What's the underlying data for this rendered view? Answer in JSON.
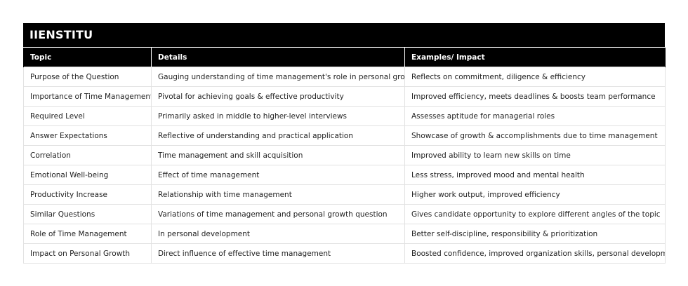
{
  "brand": {
    "title": "IIENSTITU"
  },
  "table": {
    "headers": [
      "Topic",
      "Details",
      "Examples/ Impact"
    ],
    "rows": [
      [
        "Purpose of the Question",
        "Gauging understanding of time management's role in personal growth",
        "Reflects on commitment, diligence & efficiency"
      ],
      [
        "Importance of Time Management",
        "Pivotal for achieving goals & effective productivity",
        "Improved efficiency, meets deadlines & boosts team performance"
      ],
      [
        "Required Level",
        "Primarily asked in middle to higher-level interviews",
        "Assesses aptitude for managerial roles"
      ],
      [
        "Answer Expectations",
        "Reflective of understanding and practical application",
        "Showcase of growth & accomplishments due to time management"
      ],
      [
        "Correlation",
        "Time management and skill acquisition",
        "Improved ability to learn new skills on time"
      ],
      [
        "Emotional Well-being",
        "Effect of time management",
        "Less stress, improved mood and mental health"
      ],
      [
        "Productivity Increase",
        "Relationship with time management",
        "Higher work output, improved efficiency"
      ],
      [
        "Similar Questions",
        "Variations of time management and personal growth question",
        "Gives candidate opportunity to explore different angles of the topic"
      ],
      [
        "Role of Time Management",
        "In personal development",
        "Better self-discipline, responsibility & prioritization"
      ],
      [
        "Impact on Personal Growth",
        "Direct influence of effective time management",
        "Boosted confidence, improved organization skills, personal development"
      ]
    ]
  }
}
